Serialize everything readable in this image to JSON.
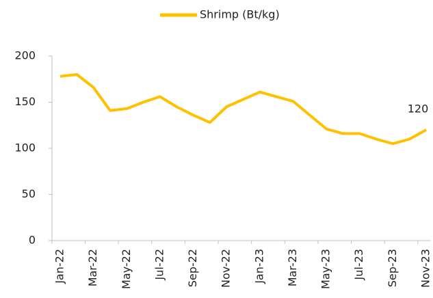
{
  "chart_data": {
    "type": "line",
    "categories": [
      "Jan-22",
      null,
      "Mar-22",
      null,
      "May-22",
      null,
      "Jul-22",
      null,
      "Sep-22",
      null,
      "Nov-22",
      null,
      "Jan-23",
      null,
      "Mar-23",
      null,
      "May-23",
      null,
      "Jul-23",
      null,
      "Sep-23",
      null,
      "Nov-23"
    ],
    "series": [
      {
        "name": "Shrimp (Bt/kg)",
        "color": "#FFC000",
        "values": [
          178,
          180,
          166,
          141,
          143,
          150,
          156,
          145,
          136,
          128,
          145,
          153,
          161,
          156,
          151,
          136,
          121,
          116,
          116,
          110,
          105,
          110,
          120
        ]
      }
    ],
    "ylim": [
      0,
      200
    ],
    "yticks": [
      0,
      50,
      100,
      150,
      200
    ],
    "grid": false,
    "legend": "top"
  }
}
